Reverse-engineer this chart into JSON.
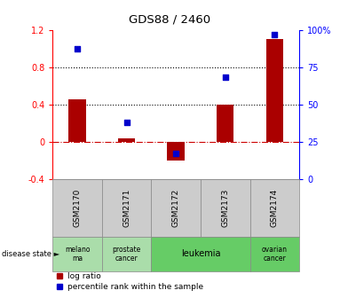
{
  "title": "GDS88 / 2460",
  "samples": [
    "GSM2170",
    "GSM2171",
    "GSM2172",
    "GSM2173",
    "GSM2174"
  ],
  "log_ratio": [
    0.45,
    0.03,
    -0.2,
    0.4,
    1.1
  ],
  "percentile_rank": [
    87,
    38,
    17,
    68,
    97
  ],
  "ylim_left": [
    -0.4,
    1.2
  ],
  "ylim_right": [
    0,
    100
  ],
  "yticks_left": [
    -0.4,
    0.0,
    0.4,
    0.8,
    1.2
  ],
  "yticks_right": [
    0,
    25,
    50,
    75,
    100
  ],
  "ytick_labels_left": [
    "-0.4",
    "0",
    "0.4",
    "0.8",
    "1.2"
  ],
  "ytick_labels_right": [
    "0",
    "25",
    "50",
    "75",
    "100%"
  ],
  "hlines": [
    0.0,
    0.4,
    0.8
  ],
  "hline_styles": [
    "dashdot",
    "dotted",
    "dotted"
  ],
  "hline_colors": [
    "#cc0000",
    "black",
    "black"
  ],
  "disease_states": [
    {
      "label": "melano\nma",
      "start": 0,
      "end": 1,
      "color": "#aaddaa"
    },
    {
      "label": "prostate\ncancer",
      "start": 1,
      "end": 2,
      "color": "#aaddaa"
    },
    {
      "label": "leukemia",
      "start": 2,
      "end": 4,
      "color": "#66cc66"
    },
    {
      "label": "ovarian\ncancer",
      "start": 4,
      "end": 5,
      "color": "#66cc66"
    }
  ],
  "bar_color": "#aa0000",
  "dot_color": "#0000cc",
  "sample_box_color": "#cccccc",
  "legend_label_bar": "log ratio",
  "legend_label_dot": "percentile rank within the sample",
  "disease_state_label": "disease state",
  "bar_width": 0.35
}
